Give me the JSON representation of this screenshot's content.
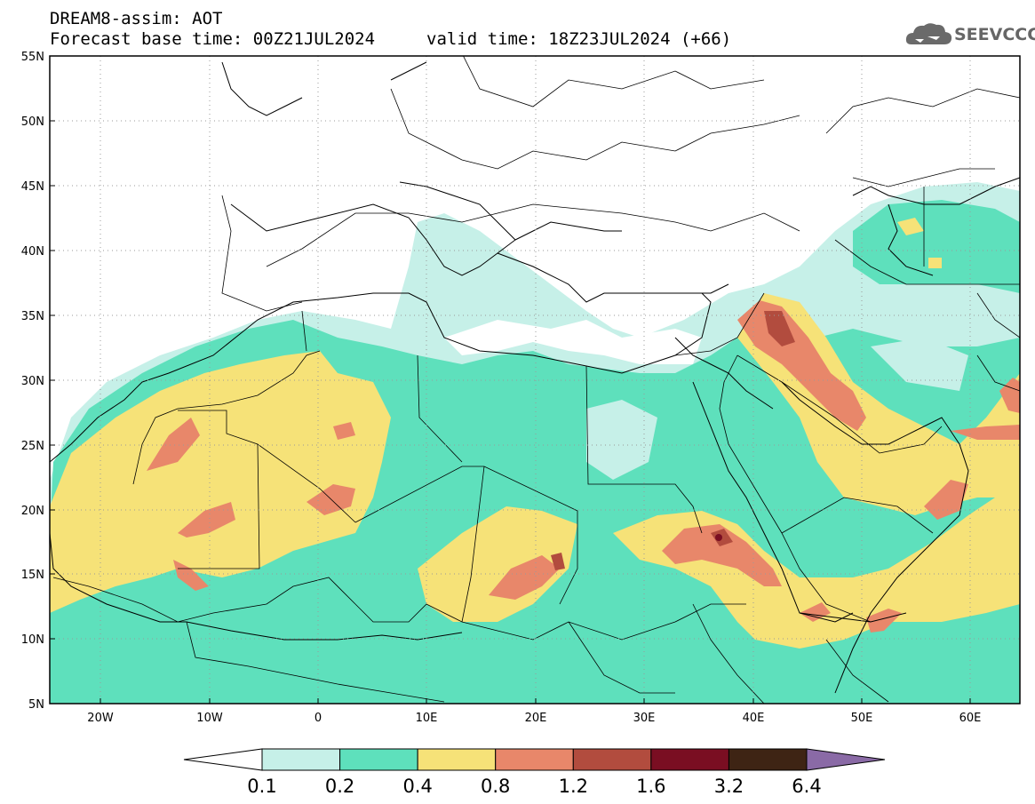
{
  "header": {
    "line1": "DREAM8-assim: AOT",
    "line2": "Forecast base time: 00Z21JUL2024",
    "valid": "valid time: 18Z23JUL2024 (+66)"
  },
  "logo": {
    "text": "SEEVCCC",
    "icon": "cloud-icon",
    "color": "#666666"
  },
  "map": {
    "lat_range": [
      5,
      55
    ],
    "lon_range": [
      -25,
      65
    ],
    "lat_labels": [
      "55N",
      "50N",
      "45N",
      "40N",
      "35N",
      "30N",
      "25N",
      "20N",
      "15N",
      "10N",
      "5N"
    ],
    "lon_labels": [
      "20W",
      "10W",
      "0",
      "10E",
      "20E",
      "30E",
      "40E",
      "50E",
      "60E"
    ]
  },
  "colorbar": {
    "labels": [
      "0.1",
      "0.2",
      "0.4",
      "0.8",
      "1.2",
      "1.6",
      "3.2",
      "6.4"
    ],
    "colors": [
      "#ffffff",
      "#c6f0e8",
      "#5ee0bc",
      "#f6e278",
      "#e8876a",
      "#b24c3e",
      "#7a0e22",
      "#3e2414",
      "#8a6aa6"
    ]
  }
}
